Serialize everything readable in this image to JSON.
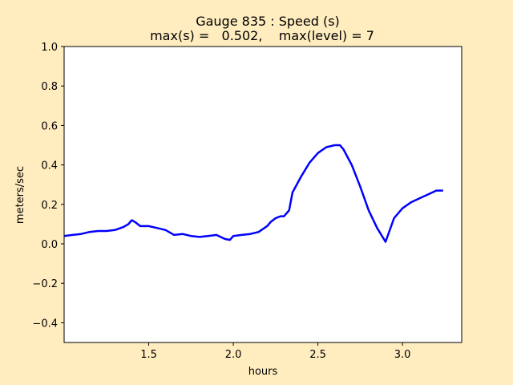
{
  "chart_data": {
    "type": "line",
    "title": "Gauge 835 : Speed (s)",
    "subtitle": "max(s) =   0.502,    max(level) = 7",
    "xlabel": "hours",
    "ylabel": "meters/sec",
    "xlim": [
      1.0,
      3.35
    ],
    "ylim": [
      -0.5,
      1.0
    ],
    "xticks": [
      1.5,
      2.0,
      2.5,
      3.0
    ],
    "xtick_labels": [
      "1.5",
      "2.0",
      "2.5",
      "3.0"
    ],
    "yticks": [
      -0.4,
      -0.2,
      0.0,
      0.2,
      0.4,
      0.6,
      0.8,
      1.0
    ],
    "ytick_labels": [
      "−0.4",
      "−0.2",
      "0.0",
      "0.2",
      "0.4",
      "0.6",
      "0.8",
      "1.0"
    ],
    "grid": false,
    "line_color": "#0000ff",
    "background_color": "#ffedc0",
    "plot_background_color": "#ffffff",
    "series": [
      {
        "x": [
          1.0,
          1.05,
          1.1,
          1.15,
          1.2,
          1.25,
          1.3,
          1.35,
          1.38,
          1.4,
          1.42,
          1.45,
          1.5,
          1.55,
          1.6,
          1.65,
          1.7,
          1.75,
          1.8,
          1.85,
          1.9,
          1.95,
          1.98,
          2.0,
          2.05,
          2.1,
          2.15,
          2.2,
          2.22,
          2.25,
          2.28,
          2.3,
          2.33,
          2.35,
          2.4,
          2.45,
          2.5,
          2.55,
          2.6,
          2.63,
          2.65,
          2.7,
          2.75,
          2.8,
          2.85,
          2.9,
          2.95,
          3.0,
          3.05,
          3.1,
          3.15,
          3.2,
          3.24
        ],
        "y": [
          0.04,
          0.045,
          0.05,
          0.06,
          0.065,
          0.065,
          0.07,
          0.085,
          0.1,
          0.12,
          0.11,
          0.09,
          0.09,
          0.08,
          0.07,
          0.045,
          0.05,
          0.04,
          0.035,
          0.04,
          0.045,
          0.025,
          0.02,
          0.04,
          0.045,
          0.05,
          0.06,
          0.09,
          0.11,
          0.13,
          0.14,
          0.14,
          0.17,
          0.26,
          0.34,
          0.41,
          0.46,
          0.49,
          0.5,
          0.5,
          0.48,
          0.4,
          0.29,
          0.17,
          0.08,
          0.01,
          0.13,
          0.18,
          0.21,
          0.23,
          0.25,
          0.27,
          0.27
        ]
      }
    ]
  }
}
